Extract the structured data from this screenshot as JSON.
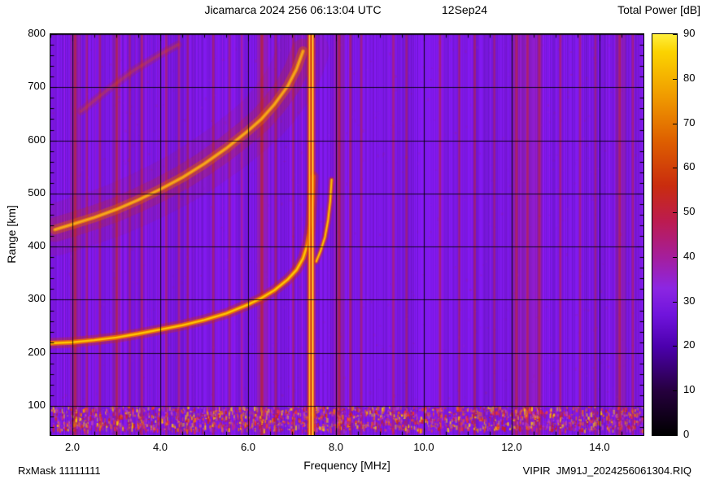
{
  "header": {
    "title": "Jicamarca 2024 256 06:13:04 UTC",
    "date": "12Sep24",
    "colorbar_label": "Total Power [dB]"
  },
  "footer": {
    "rx_mask": "RxMask 11111111",
    "file_id": "VIPIR  JM91J_2024256061304.RIQ"
  },
  "chart_data": {
    "type": "heatmap",
    "title": "Jicamarca 2024 256 06:13:04 UTC",
    "date_label": "12Sep24",
    "xlabel": "Frequency [MHz]",
    "ylabel": "Range [km]",
    "xlim": [
      1.5,
      15.0
    ],
    "ylim": [
      45,
      800
    ],
    "x_ticks": [
      2,
      4,
      6,
      8,
      10,
      12,
      14
    ],
    "x_tick_labels": [
      "2.0",
      "4.0",
      "6.0",
      "8.0",
      "10.0",
      "12.0",
      "14.0"
    ],
    "x_minor_step": 0.5,
    "y_ticks": [
      100,
      200,
      300,
      400,
      500,
      600,
      700,
      800
    ],
    "y_tick_labels": [
      "100",
      "200",
      "300",
      "400",
      "500",
      "600",
      "700",
      "800"
    ],
    "y_minor_step": 20,
    "grid": true,
    "colorbar": {
      "label": "Total Power [dB]",
      "min": 0,
      "max": 90,
      "ticks": [
        0,
        10,
        20,
        30,
        40,
        50,
        60,
        70,
        80,
        90
      ],
      "palette": [
        {
          "db": 0,
          "color": "#000000"
        },
        {
          "db": 10,
          "color": "#26003e"
        },
        {
          "db": 20,
          "color": "#4c00ae"
        },
        {
          "db": 27,
          "color": "#7014dc"
        },
        {
          "db": 33,
          "color": "#8c26e2"
        },
        {
          "db": 40,
          "color": "#a51e9c"
        },
        {
          "db": 48,
          "color": "#bc1b50"
        },
        {
          "db": 56,
          "color": "#c92c0e"
        },
        {
          "db": 66,
          "color": "#de5f00"
        },
        {
          "db": 76,
          "color": "#f09a00"
        },
        {
          "db": 86,
          "color": "#fbd300"
        },
        {
          "db": 90,
          "color": "#ffef3c"
        }
      ]
    },
    "background_level_db": 25,
    "background_color": "#7c18e4",
    "noise_band_km": [
      55,
      100
    ],
    "critical_frequency_mhz": 7.45,
    "traces": [
      {
        "id": "first_hop",
        "name": "F-region echo 1st hop",
        "points": [
          [
            1.5,
            218
          ],
          [
            2,
            220
          ],
          [
            2.5,
            224
          ],
          [
            3,
            229
          ],
          [
            3.5,
            236
          ],
          [
            4,
            244
          ],
          [
            4.5,
            252
          ],
          [
            5,
            262
          ],
          [
            5.5,
            274
          ],
          [
            6,
            291
          ],
          [
            6.3,
            303
          ],
          [
            6.6,
            318
          ],
          [
            6.9,
            338
          ],
          [
            7.1,
            356
          ],
          [
            7.25,
            378
          ],
          [
            7.35,
            404
          ],
          [
            7.42,
            440
          ],
          [
            7.46,
            490
          ],
          [
            7.48,
            532
          ]
        ]
      },
      {
        "id": "first_hop_x",
        "name": "X-mode cusp",
        "points": [
          [
            7.55,
            372
          ],
          [
            7.65,
            392
          ],
          [
            7.75,
            418
          ],
          [
            7.82,
            450
          ],
          [
            7.87,
            486
          ],
          [
            7.9,
            526
          ]
        ]
      },
      {
        "id": "second_hop",
        "name": "2nd hop echo (diffuse)",
        "points": [
          [
            1.6,
            432
          ],
          [
            2,
            442
          ],
          [
            2.5,
            455
          ],
          [
            3,
            470
          ],
          [
            3.5,
            488
          ],
          [
            4,
            508
          ],
          [
            4.5,
            530
          ],
          [
            5,
            556
          ],
          [
            5.5,
            585
          ],
          [
            6,
            618
          ],
          [
            6.3,
            640
          ],
          [
            6.6,
            668
          ],
          [
            6.9,
            702
          ],
          [
            7.1,
            734
          ],
          [
            7.25,
            768
          ]
        ]
      },
      {
        "id": "third_hop_faint",
        "name": "faint upper diagonal echo",
        "points": [
          [
            2.2,
            655
          ],
          [
            2.8,
            695
          ],
          [
            3.4,
            732
          ],
          [
            4,
            762
          ],
          [
            4.4,
            780
          ]
        ]
      }
    ],
    "interference_lines": [
      [
        2.05,
        0.5
      ],
      [
        2.32,
        0.3
      ],
      [
        2.62,
        0.3
      ],
      [
        3.0,
        0.45
      ],
      [
        3.3,
        0.25
      ],
      [
        3.57,
        0.4
      ],
      [
        4.13,
        0.35
      ],
      [
        4.42,
        0.3
      ],
      [
        4.62,
        0.25
      ],
      [
        5.2,
        0.35
      ],
      [
        5.57,
        0.25
      ],
      [
        5.85,
        0.2
      ],
      [
        6.3,
        0.55
      ],
      [
        6.62,
        0.35
      ],
      [
        7.02,
        0.3
      ],
      [
        7.4,
        1.0
      ],
      [
        7.47,
        0.85
      ],
      [
        8.06,
        0.5
      ],
      [
        8.32,
        0.4
      ],
      [
        8.57,
        0.3
      ],
      [
        9.3,
        0.35
      ],
      [
        9.6,
        0.3
      ],
      [
        10.36,
        0.35
      ],
      [
        10.8,
        0.3
      ],
      [
        11.15,
        0.35
      ],
      [
        11.6,
        0.25
      ],
      [
        12.1,
        0.45
      ],
      [
        12.35,
        0.4
      ],
      [
        12.62,
        0.4
      ],
      [
        13.1,
        0.35
      ],
      [
        13.55,
        0.3
      ],
      [
        13.9,
        0.25
      ],
      [
        14.45,
        0.4
      ],
      [
        14.75,
        0.35
      ]
    ],
    "interference_bands": [
      [
        1.95,
        2.2,
        0.18
      ],
      [
        2.9,
        3.1,
        0.15
      ],
      [
        6.2,
        6.45,
        0.2
      ],
      [
        7.95,
        8.2,
        0.18
      ],
      [
        12.0,
        12.7,
        0.15
      ],
      [
        14.35,
        14.6,
        0.16
      ]
    ]
  }
}
